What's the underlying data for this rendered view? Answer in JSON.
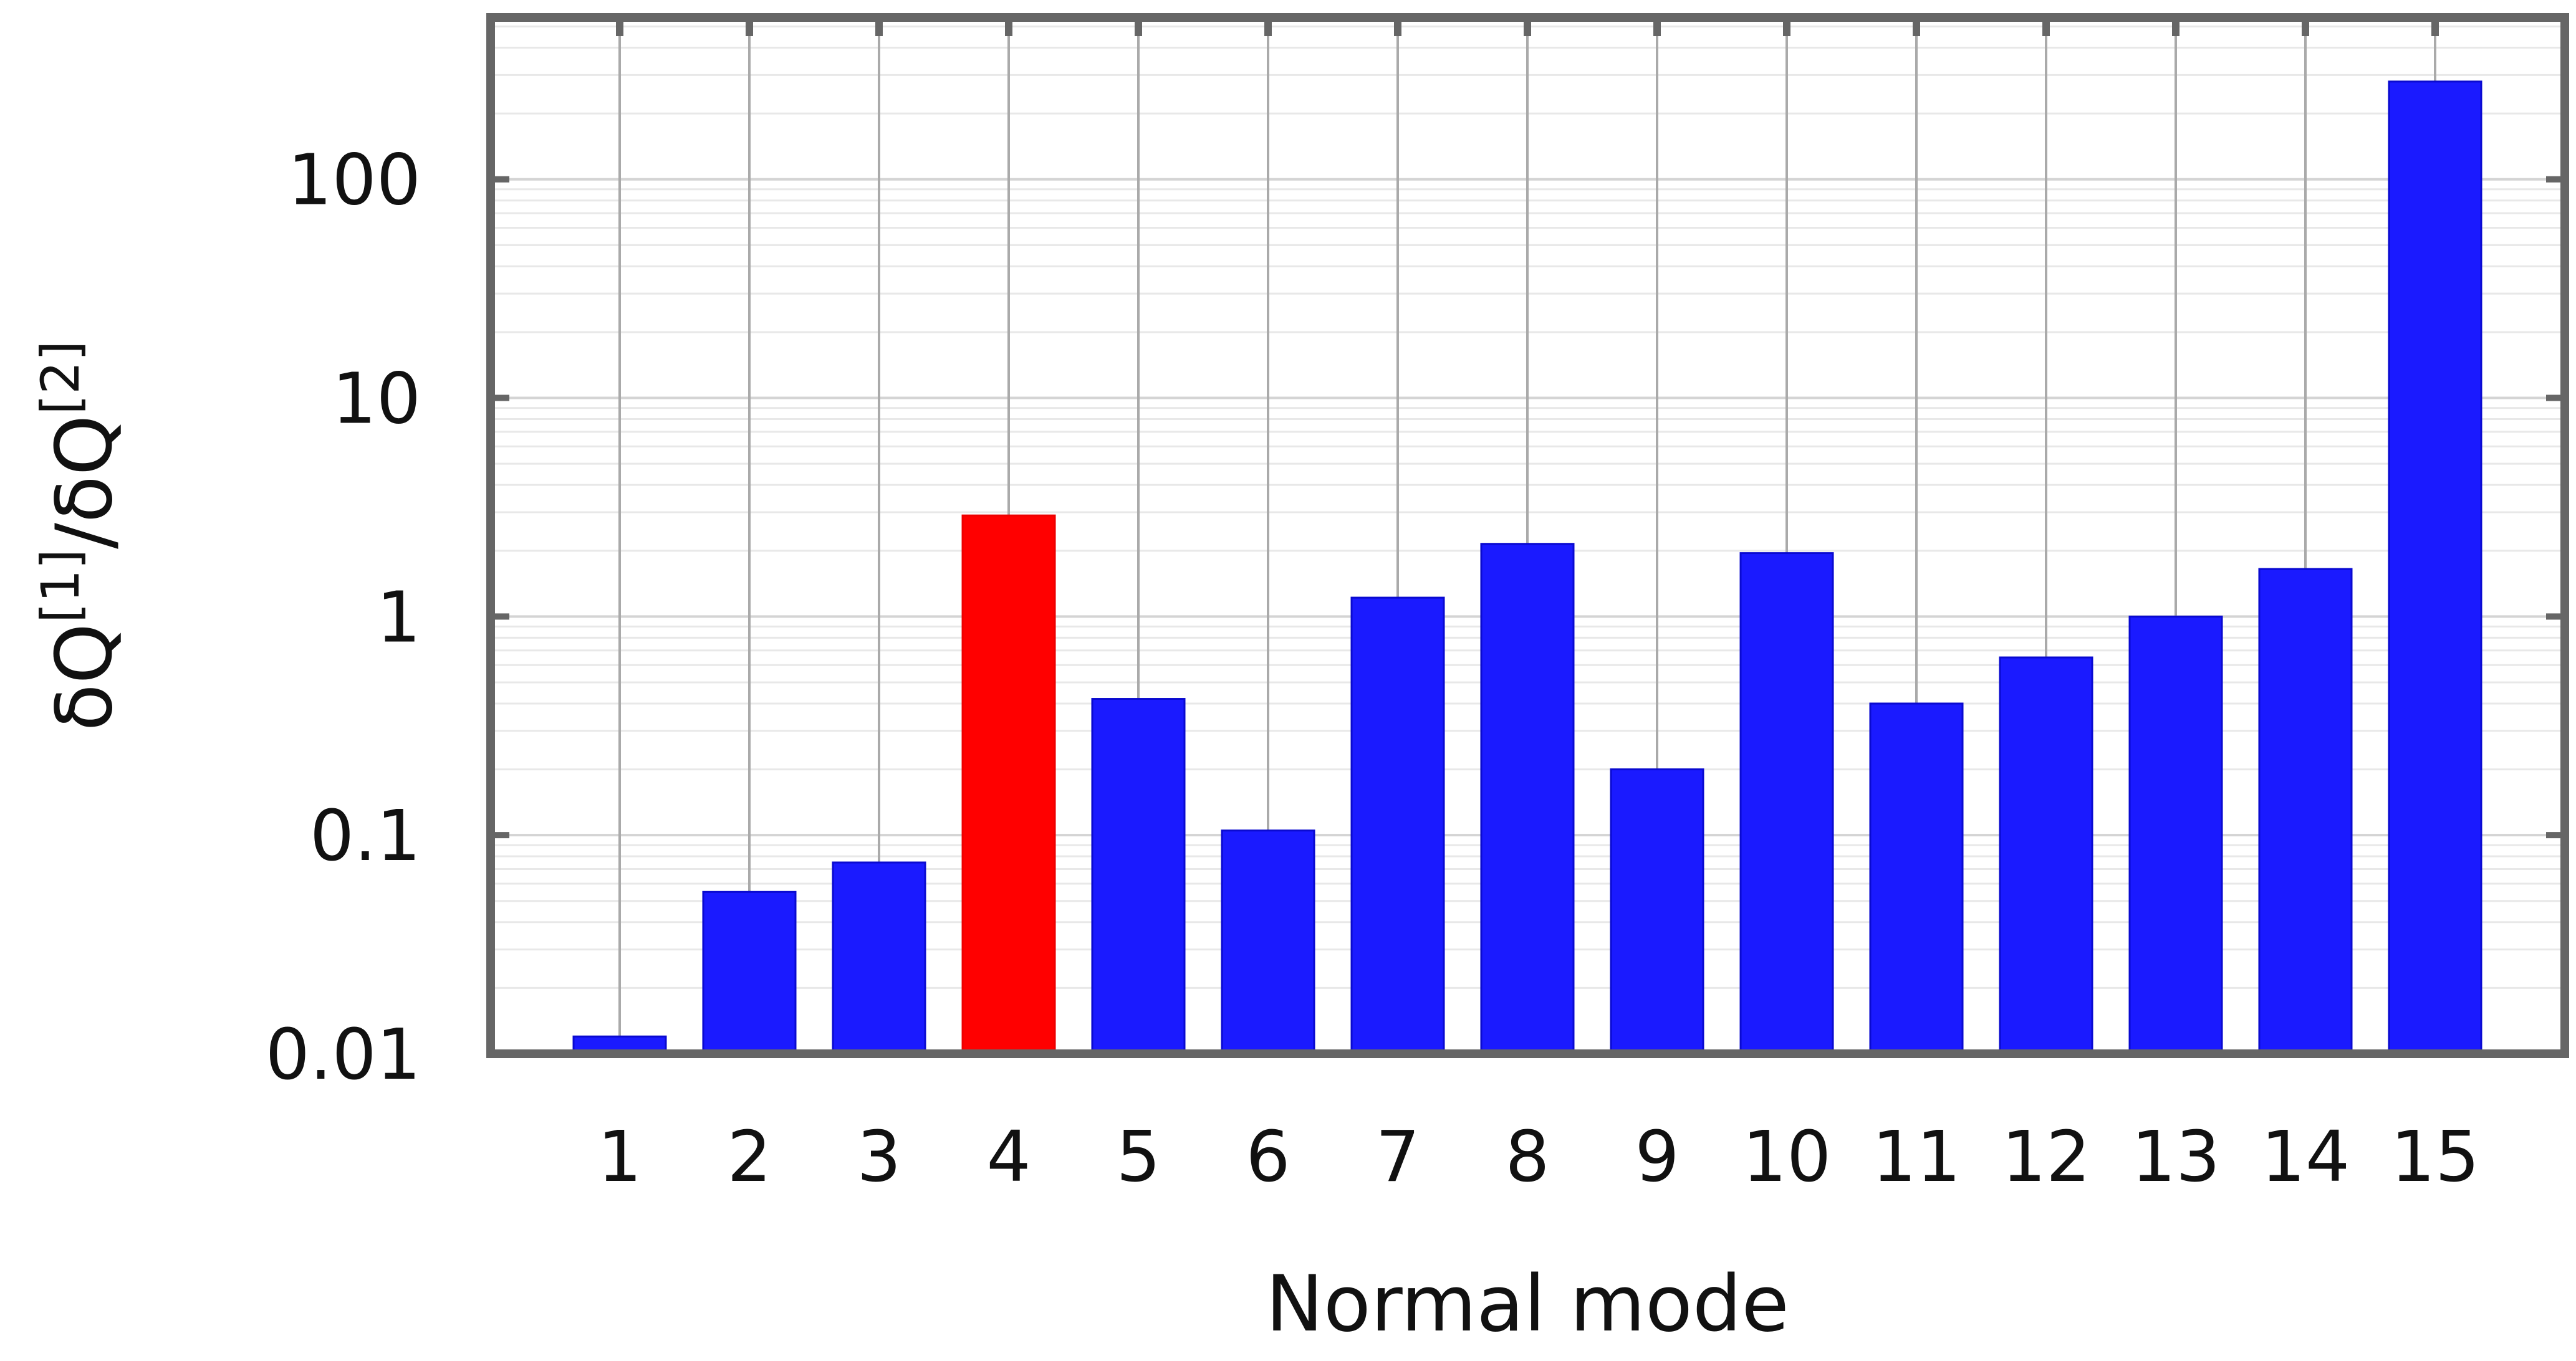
{
  "chart_data": {
    "type": "bar",
    "categories": [
      "1",
      "2",
      "3",
      "4",
      "5",
      "6",
      "7",
      "8",
      "9",
      "10",
      "11",
      "12",
      "13",
      "14",
      "15"
    ],
    "values": [
      0.012,
      0.055,
      0.075,
      2.9,
      0.42,
      0.105,
      1.22,
      2.15,
      0.2,
      1.95,
      0.4,
      0.65,
      1.0,
      1.65,
      280
    ],
    "colors": [
      "#1a1aff",
      "#1a1aff",
      "#1a1aff",
      "#ff0000",
      "#1a1aff",
      "#1a1aff",
      "#1a1aff",
      "#1a1aff",
      "#1a1aff",
      "#1a1aff",
      "#1a1aff",
      "#1a1aff",
      "#1a1aff",
      "#1a1aff",
      "#1a1aff"
    ],
    "highlight_color": "#ff0000",
    "bar_color": "#1a1aff",
    "xlabel": "Normal mode",
    "ylabel": {
      "part1": "δQ",
      "sup1": "[1]",
      "sep": "/δQ",
      "sup2": "[2]"
    },
    "yscale": "log",
    "ylim": [
      0.01,
      550
    ],
    "yticks": [
      0.01,
      0.1,
      1,
      10,
      100
    ],
    "ytick_labels": [
      "0.01",
      "0.1",
      "1",
      "10",
      "100"
    ],
    "grid": true
  }
}
